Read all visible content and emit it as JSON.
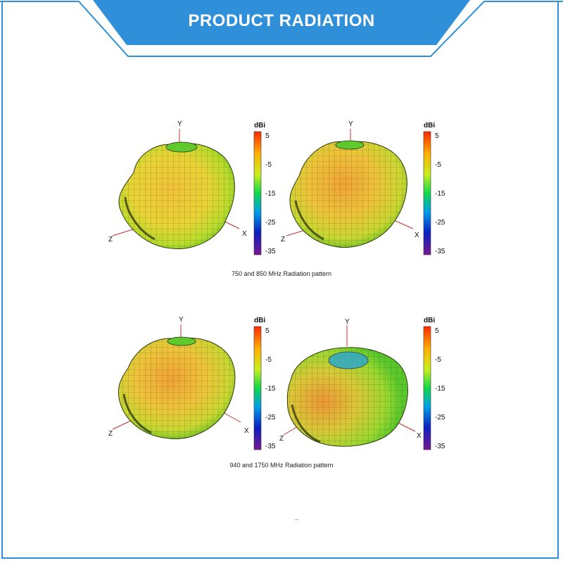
{
  "header": {
    "title": "PRODUCT RADIATION"
  },
  "colorbar": {
    "unit": "dBi",
    "ticks": [
      "5",
      "-5",
      "-15",
      "-25",
      "-35"
    ]
  },
  "axes": {
    "x": "X",
    "y": "Y",
    "z": "Z"
  },
  "captions": {
    "top": "750 and 850 MHz Radiation pattern",
    "bottom": "940 and 1750 MHz Radiation pattern"
  },
  "fragment": "..."
}
